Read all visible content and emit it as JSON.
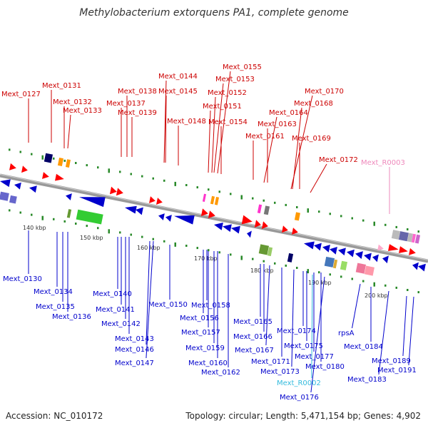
{
  "title": "Methylobacterium extorquens PA1, complete genome",
  "footer": {
    "accession": "Accession: NC_010172",
    "summary": "Topology: circular; Length: 5,471,154 bp; Genes: 4,902"
  },
  "colors": {
    "backbone": "#999999",
    "top_label": "#cc0000",
    "bottom_label": "#0000cc",
    "rna_top_label": "#ee88bb",
    "rna_bottom_label": "#33bbdd",
    "tick": "#2a8a2a"
  },
  "scale_ticks": [
    "140 kbp",
    "150 kbp",
    "160 kbp",
    "170 kbp",
    "180 kbp",
    "190 kbp",
    "200 kbp"
  ],
  "top_labels": [
    "Mext_0127",
    "Mext_0131",
    "Mext_0132",
    "Mext_0133",
    "Mext_0137",
    "Mext_0138",
    "Mext_0139",
    "Mext_0144",
    "Mext_0145",
    "Mext_0148",
    "Mext_0155",
    "Mext_0153",
    "Mext_0152",
    "Mext_0151",
    "Mext_0154",
    "Mext_0164",
    "Mext_0163",
    "Mext_0161",
    "Mext_0170",
    "Mext_0168",
    "Mext_0169",
    "Mext_0172",
    "Mext_R0003"
  ],
  "bottom_labels": [
    "Mext_0130",
    "Mext_0134",
    "Mext_0135",
    "Mext_0136",
    "Mext_0140",
    "Mext_0141",
    "Mext_0142",
    "Mext_0143",
    "Mext_0146",
    "Mext_0147",
    "Mext_0150",
    "Mext_0158",
    "Mext_0156",
    "Mext_0157",
    "Mext_0159",
    "Mext_0160",
    "Mext_0162",
    "Mext_0165",
    "Mext_0166",
    "Mext_0167",
    "Mext_0171",
    "Mext_0173",
    "Mext_0174",
    "Mext_0175",
    "Mext_0177",
    "Mext_0180",
    "Mext_R0002",
    "Mext_0176",
    "rpsA",
    "Mext_0184",
    "Mext_0183",
    "Mext_0189",
    "Mext_0191"
  ]
}
